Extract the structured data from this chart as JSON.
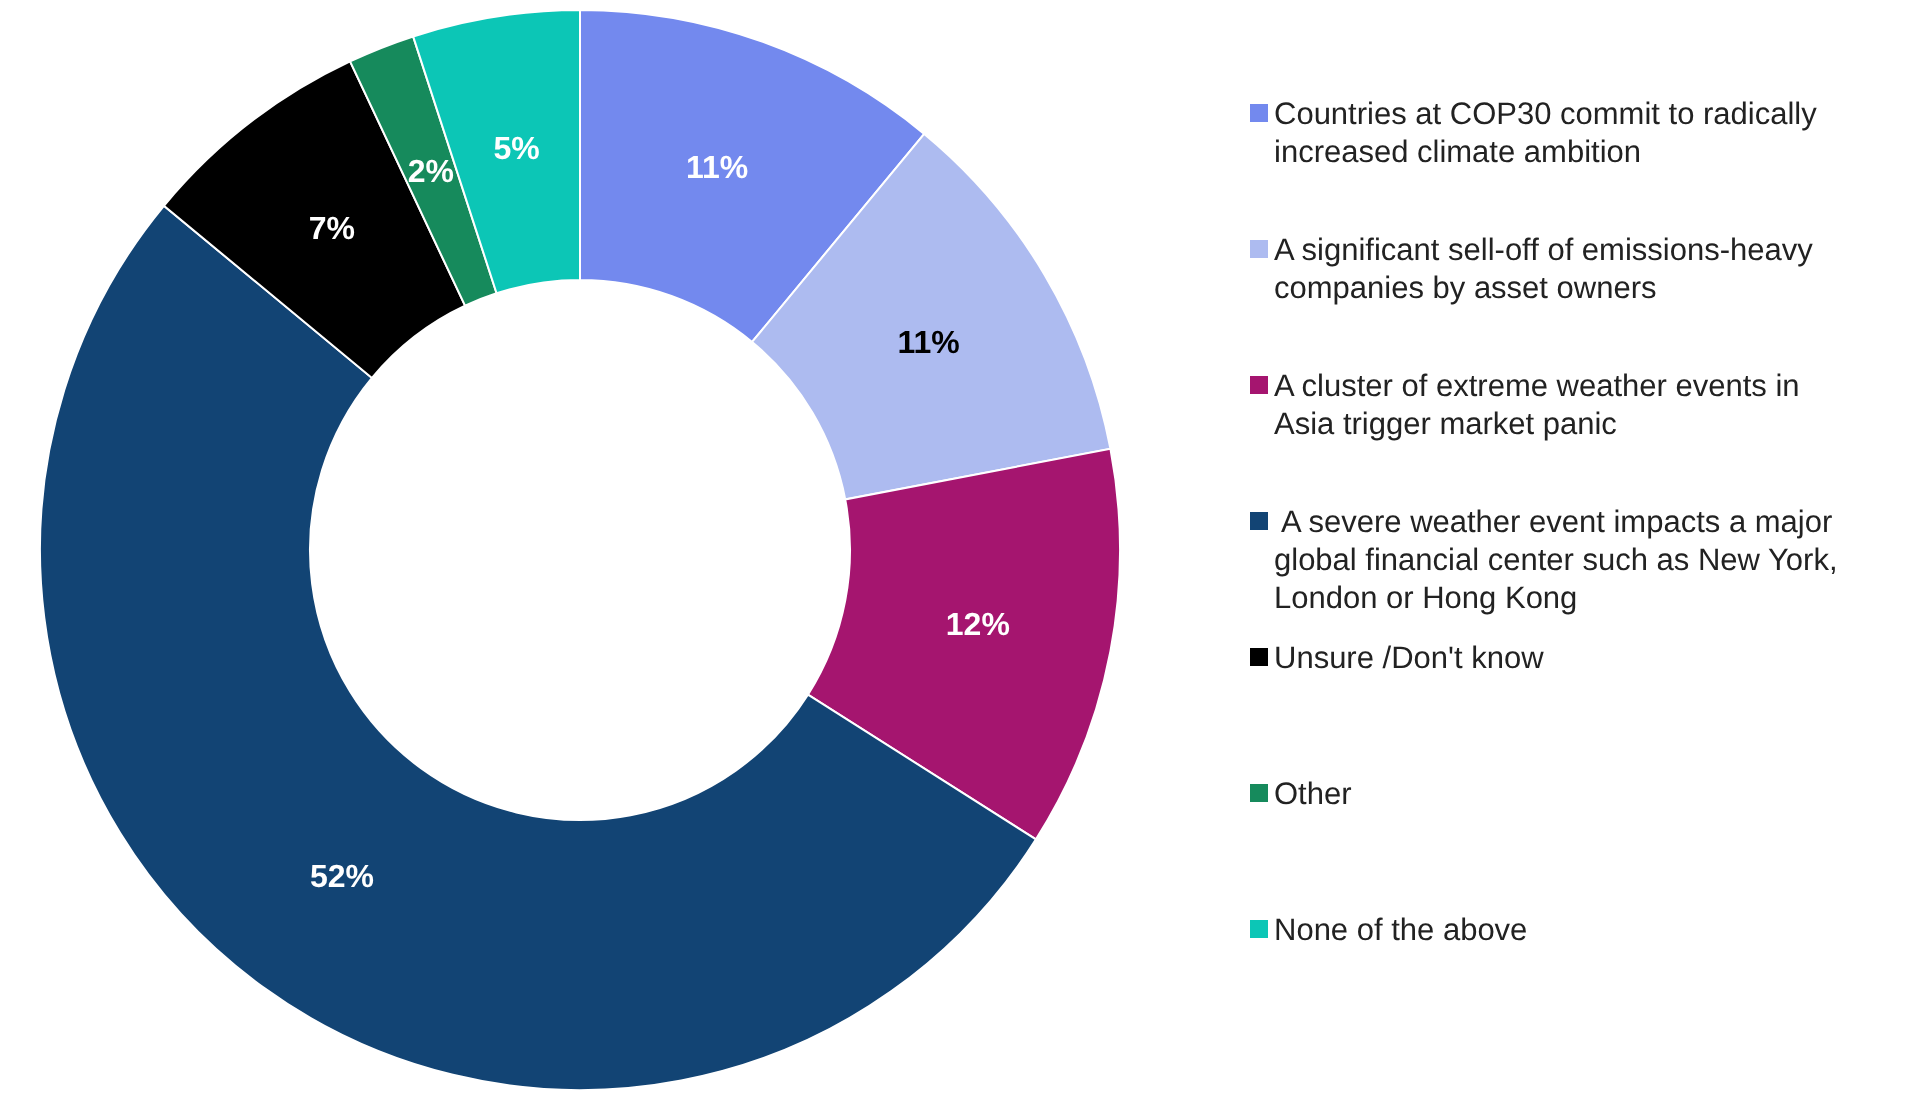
{
  "chart_data": {
    "type": "donut",
    "categories": [
      "Countries at COP30 commit to radically increased climate ambition",
      "A significant sell-off of emissions-heavy companies by asset owners",
      "A cluster of extreme weather events in Asia trigger market panic",
      " A severe weather event impacts a major global financial center such as New York, London or Hong Kong",
      "Unsure /Don't know",
      "Other",
      "None of the above"
    ],
    "values": [
      11,
      11,
      12,
      52,
      7,
      2,
      5
    ],
    "colors": [
      "#7389ee",
      "#adbbf0",
      "#a5156f",
      "#124474",
      "#000000",
      "#168a5c",
      "#0cc6b6"
    ],
    "value_labels": [
      "11%",
      "11%",
      "12%",
      "52%",
      "7%",
      "2%",
      "5%"
    ],
    "legend": "right"
  }
}
